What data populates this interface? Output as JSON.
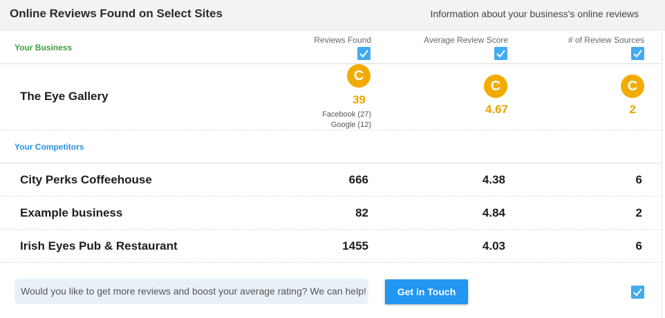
{
  "header": {
    "title": "Online Reviews Found on Select Sites",
    "subtitle": "Information about your business's online reviews"
  },
  "sections": {
    "your_business": "Your Business",
    "competitors": "Your Competitors"
  },
  "columns": [
    "Reviews Found",
    "Average Review Score",
    "# of Review Sources"
  ],
  "columns_checked": [
    true,
    true,
    true
  ],
  "business": {
    "name": "The Eye Gallery",
    "grades": [
      "C",
      "C",
      "C"
    ],
    "reviews_found": "39",
    "average_score": "4.67",
    "review_sources": "2",
    "source_breakdown": [
      "Facebook (27)",
      "Google (12)"
    ]
  },
  "competitors": [
    {
      "name": "City Perks Coffeehouse",
      "reviews_found": "666",
      "average_score": "4.38",
      "review_sources": "6"
    },
    {
      "name": "Example business",
      "reviews_found": "82",
      "average_score": "4.84",
      "review_sources": "2"
    },
    {
      "name": "Irish Eyes Pub & Restaurant",
      "reviews_found": "1455",
      "average_score": "4.03",
      "review_sources": "6"
    }
  ],
  "cta": {
    "text": "Would you like to get more reviews and boost your average rating? We can help!",
    "button_label": "Get in Touch",
    "checked": true
  },
  "colors": {
    "accent_blue": "#2196f3",
    "checkbox_blue": "#42aaf0",
    "grade_amber": "#f2ab00",
    "score_amber": "#e8a400",
    "your_business_green": "#3f9b3f",
    "competitors_blue": "#2b8fe3"
  },
  "icons": {
    "checkbox": "checkbox-checked-icon",
    "grade": "grade-badge"
  }
}
